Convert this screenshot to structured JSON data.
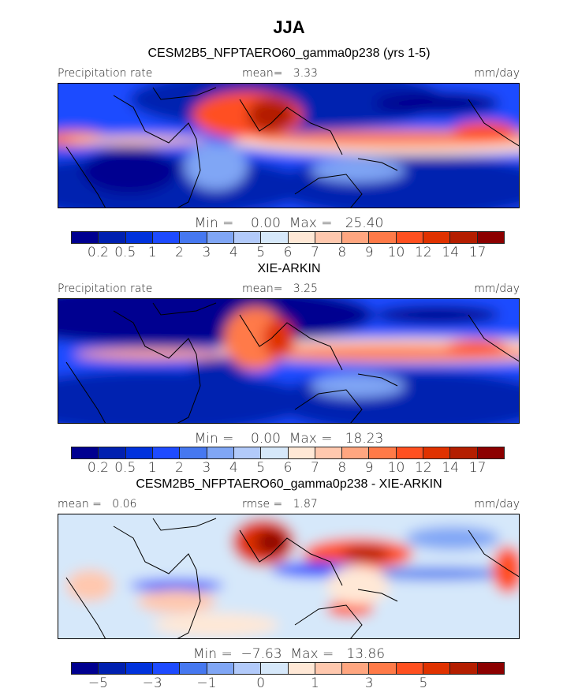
{
  "title": "JJA",
  "colors": [
    "#000090",
    "#0020B0",
    "#0032DC",
    "#1E4BFF",
    "#4678F0",
    "#80A6F5",
    "#B2CAFA",
    "#D6E8FA",
    "#FFE8D6",
    "#FFC8AE",
    "#FFA680",
    "#FF7A48",
    "#FF5020",
    "#E03200",
    "#B41E00",
    "#8C0000"
  ],
  "panels": [
    {
      "subtitle": "CESM2B5_NFPTAERO60_gamma0p238 (yrs 1-5)",
      "left": "Precipitation rate",
      "center": "mean=   3.33",
      "right": "mm/day",
      "min_max": "Min =    0.00  Max =   25.40",
      "ticks": [
        "0.2",
        "0.5",
        "1",
        "2",
        "3",
        "4",
        "5",
        "6",
        "7",
        "8",
        "9",
        "10",
        "12",
        "14",
        "17"
      ]
    },
    {
      "subtitle": "XIE-ARKIN",
      "left": "Precipitation rate",
      "center": "mean=   3.25",
      "right": "mm/day",
      "min_max": "Min =    0.00  Max =   18.23",
      "ticks": [
        "0.2",
        "0.5",
        "1",
        "2",
        "3",
        "4",
        "5",
        "6",
        "7",
        "8",
        "9",
        "10",
        "12",
        "14",
        "17"
      ]
    },
    {
      "subtitle": "CESM2B5_NFPTAERO60_gamma0p238 - XIE-ARKIN",
      "left": "mean =   0.06",
      "center": "rmse =   1.87",
      "right": "mm/day",
      "min_max": "Min =  −7.63  Max =   13.86",
      "ticks": [
        "−5",
        "",
        "−3",
        "",
        "−1",
        "",
        "0",
        "",
        "1",
        "",
        "3",
        "",
        "5",
        "",
        ""
      ]
    }
  ]
}
